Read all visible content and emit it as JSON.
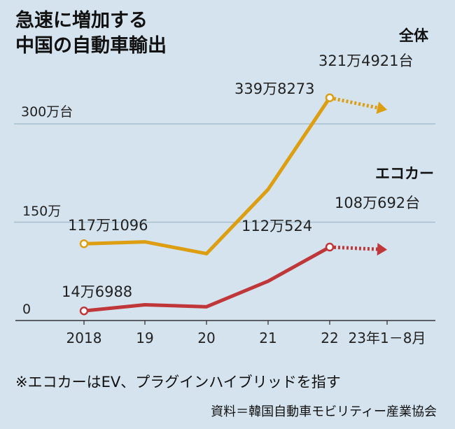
{
  "title_lines": [
    "急速に増加する",
    "中国の自動車輸出"
  ],
  "note": "※エコカーはEV、プラグインハイブリッドを指す",
  "source": "資料＝韓国自動車モビリティー産業協会",
  "colors": {
    "background": "#d4e3ee",
    "total": "#dd9e12",
    "ecocar": "#c0373a",
    "grid": "#a7bfce",
    "axis": "#333333"
  },
  "chart_data": {
    "type": "line",
    "categories": [
      "2018",
      "19",
      "20",
      "21",
      "22",
      "23年1－8月"
    ],
    "y_ticks": [
      {
        "value": 0,
        "label": "0"
      },
      {
        "value": 150,
        "label": "150万"
      },
      {
        "value": 300,
        "label": "300万台"
      }
    ],
    "ylim": [
      0,
      360
    ],
    "series": [
      {
        "name": "全体",
        "color": "#dd9e12",
        "values": [
          117.1096,
          120.0,
          102.0,
          200.0,
          339.8273,
          321.4921
        ],
        "dashed_last_segment": true,
        "labels": [
          {
            "index": 0,
            "text": "117万1096"
          },
          {
            "index": 4,
            "text": "339万8273"
          },
          {
            "index": 5,
            "text": "321万4921台"
          }
        ]
      },
      {
        "name": "エコカー",
        "color": "#c0373a",
        "values": [
          14.6988,
          24.0,
          21.0,
          60.0,
          112.0524,
          108.0692
        ],
        "dashed_last_segment": true,
        "labels": [
          {
            "index": 0,
            "text": "14万6988"
          },
          {
            "index": 4,
            "text": "112万524"
          },
          {
            "index": 5,
            "text": "108万692台"
          }
        ]
      }
    ]
  }
}
